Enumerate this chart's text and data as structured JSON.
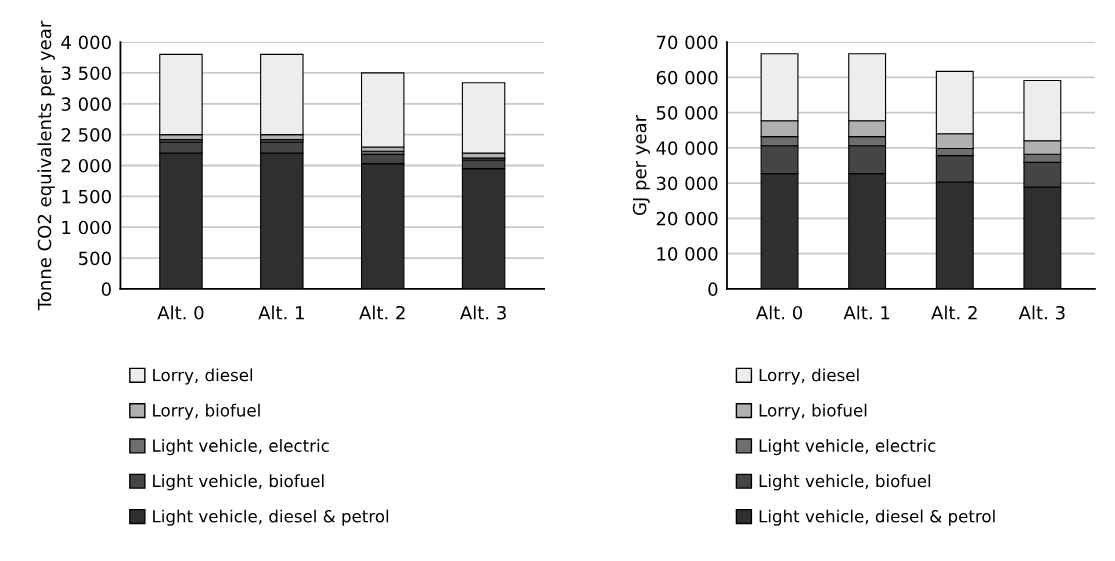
{
  "chart_data": [
    {
      "type": "bar",
      "stacked": true,
      "ylabel": "Tonne CO2 equivalents per year",
      "categories": [
        "Alt. 0",
        "Alt. 1",
        "Alt. 2",
        "Alt. 3"
      ],
      "series": [
        {
          "name": "Light vehicle, diesel & petrol",
          "color": "#2f2f2f",
          "values": [
            2200,
            2200,
            2030,
            1950
          ]
        },
        {
          "name": "Light vehicle, biofuel",
          "color": "#454545",
          "values": [
            180,
            180,
            150,
            140
          ]
        },
        {
          "name": "Light vehicle, electric",
          "color": "#6e6e6e",
          "values": [
            40,
            40,
            50,
            30
          ]
        },
        {
          "name": "Lorry, biofuel",
          "color": "#b0b0b0",
          "values": [
            80,
            80,
            70,
            80
          ]
        },
        {
          "name": "Lorry, diesel",
          "color": "#ededed",
          "values": [
            1300,
            1300,
            1200,
            1140
          ]
        }
      ],
      "ylim": [
        0,
        4000
      ],
      "yticks": [
        0,
        500,
        {
          "value": 1000,
          "label": "1 000"
        },
        {
          "value": 1500,
          "label": "1 500"
        },
        {
          "value": 2000,
          "label": "2 000"
        },
        {
          "value": 2500,
          "label": "2 500"
        },
        {
          "value": 3000,
          "label": "3 000"
        },
        {
          "value": 3500,
          "label": "3 500"
        },
        {
          "value": 4000,
          "label": "4 000"
        }
      ],
      "grid": "y",
      "legend": "bottom"
    },
    {
      "type": "bar",
      "stacked": true,
      "ylabel": "GJ per year",
      "categories": [
        "Alt. 0",
        "Alt. 1",
        "Alt. 2",
        "Alt. 3"
      ],
      "series": [
        {
          "name": "Light vehicle, diesel & petrol",
          "color": "#2f2f2f",
          "values": [
            32700,
            32700,
            30300,
            28900
          ]
        },
        {
          "name": "Light vehicle, biofuel",
          "color": "#454545",
          "values": [
            7900,
            7900,
            7500,
            7000
          ]
        },
        {
          "name": "Light vehicle, electric",
          "color": "#6e6e6e",
          "values": [
            2600,
            2600,
            2000,
            2300
          ]
        },
        {
          "name": "Lorry, biofuel",
          "color": "#b0b0b0",
          "values": [
            4500,
            4500,
            4200,
            3800
          ]
        },
        {
          "name": "Lorry, diesel",
          "color": "#ededed",
          "values": [
            19000,
            19000,
            17700,
            17100
          ]
        }
      ],
      "ylim": [
        0,
        70000
      ],
      "yticks": [
        0,
        {
          "value": 10000,
          "label": "10 000"
        },
        {
          "value": 20000,
          "label": "20 000"
        },
        {
          "value": 30000,
          "label": "30 000"
        },
        {
          "value": 40000,
          "label": "40 000"
        },
        {
          "value": 50000,
          "label": "50 000"
        },
        {
          "value": 60000,
          "label": "60 000"
        },
        {
          "value": 70000,
          "label": "70 000"
        }
      ],
      "grid": "y",
      "legend": "bottom"
    }
  ]
}
